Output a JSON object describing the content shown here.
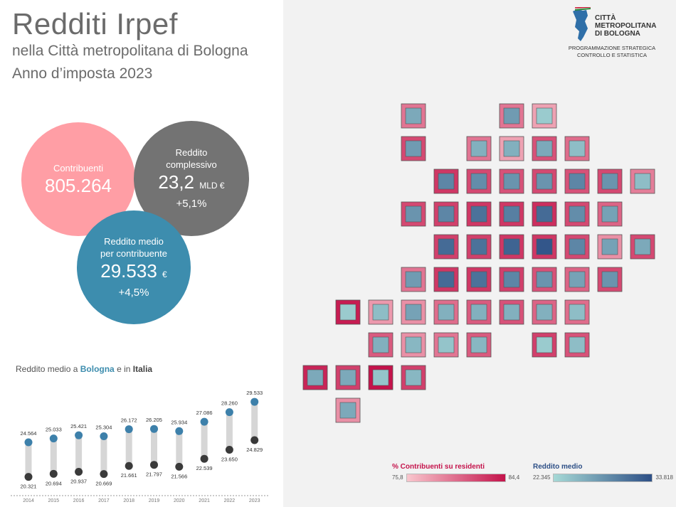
{
  "header": {
    "title": "Redditi Irpef",
    "subtitle": "nella Città metropolitana di Bologna",
    "year_line": "Anno d’imposta 2023"
  },
  "kpi": {
    "contribuenti_label": "Contribuenti",
    "contribuenti_value": "805.264",
    "tot_label_1": "Reddito",
    "tot_label_2": "complessivo",
    "tot_value": "23,2",
    "tot_unit": "MLD €",
    "tot_pct": "+5,1%",
    "med_label_1": "Reddito medio",
    "med_label_2": "per contribuente",
    "med_value": "29.533",
    "med_unit": "€",
    "med_pct": "+4,5%"
  },
  "chart_title": {
    "prefix": "Reddito medio a ",
    "bologna": "Bologna",
    "mid": " e in ",
    "italia": "Italia"
  },
  "chart_data": {
    "type": "dumbbell",
    "categories": [
      "2014",
      "2015",
      "2016",
      "2017",
      "2018",
      "2019",
      "2020",
      "2021",
      "2022",
      "2023"
    ],
    "series": [
      {
        "name": "Bologna",
        "values": [
          24564,
          25033,
          25421,
          25304,
          26172,
          26205,
          25934,
          27086,
          28260,
          29533
        ],
        "labels": [
          "24.564",
          "25.033",
          "25.421",
          "25.304",
          "26.172",
          "26.205",
          "25.934",
          "27.086",
          "28.260",
          "29.533"
        ]
      },
      {
        "name": "Italia",
        "values": [
          20321,
          20694,
          20937,
          20669,
          21661,
          21797,
          21566,
          22539,
          23650,
          24829
        ],
        "labels": [
          "20.321",
          "20.694",
          "20.937",
          "20.669",
          "21.661",
          "21.797",
          "21.566",
          "22.539",
          "23.650",
          "24.829"
        ]
      }
    ],
    "colors": {
      "bologna": "#3d80aa",
      "italia": "#3a3a3a",
      "bar": "#d6d6d6"
    }
  },
  "logo": {
    "line1": "CITTÀ",
    "line2": "METROPOLITANA",
    "line3": "DI BOLOGNA",
    "sub1": "PROGRAMMAZIONE STRATEGICA",
    "sub2": "CONTROLLO E STATISTICA"
  },
  "map": {
    "cells": [
      {
        "c": 3,
        "r": 0,
        "o": 0.45,
        "i": 0.35
      },
      {
        "c": 6,
        "r": 0,
        "o": 0.45,
        "i": 0.45
      },
      {
        "c": 7,
        "r": 0,
        "o": 0.2,
        "i": 0.1
      },
      {
        "c": 3,
        "r": 1,
        "o": 0.7,
        "i": 0.45
      },
      {
        "c": 5,
        "r": 1,
        "o": 0.45,
        "i": 0.3
      },
      {
        "c": 6,
        "r": 1,
        "o": 0.2,
        "i": 0.3
      },
      {
        "c": 7,
        "r": 1,
        "o": 0.65,
        "i": 0.35
      },
      {
        "c": 8,
        "r": 1,
        "o": 0.5,
        "i": 0.2
      },
      {
        "c": 4,
        "r": 2,
        "o": 0.8,
        "i": 0.6
      },
      {
        "c": 5,
        "r": 2,
        "o": 0.7,
        "i": 0.55
      },
      {
        "c": 6,
        "r": 2,
        "o": 0.65,
        "i": 0.5
      },
      {
        "c": 7,
        "r": 2,
        "o": 0.7,
        "i": 0.5
      },
      {
        "c": 8,
        "r": 2,
        "o": 0.65,
        "i": 0.6
      },
      {
        "c": 9,
        "r": 2,
        "o": 0.7,
        "i": 0.5
      },
      {
        "c": 10,
        "r": 2,
        "o": 0.4,
        "i": 0.2
      },
      {
        "c": 3,
        "r": 3,
        "o": 0.7,
        "i": 0.5
      },
      {
        "c": 4,
        "r": 3,
        "o": 0.75,
        "i": 0.6
      },
      {
        "c": 5,
        "r": 3,
        "o": 0.8,
        "i": 0.75
      },
      {
        "c": 6,
        "r": 3,
        "o": 0.8,
        "i": 0.65
      },
      {
        "c": 7,
        "r": 3,
        "o": 0.85,
        "i": 0.8
      },
      {
        "c": 8,
        "r": 3,
        "o": 0.7,
        "i": 0.55
      },
      {
        "c": 9,
        "r": 3,
        "o": 0.55,
        "i": 0.4
      },
      {
        "c": 4,
        "r": 4,
        "o": 0.75,
        "i": 0.8
      },
      {
        "c": 5,
        "r": 4,
        "o": 0.75,
        "i": 0.75
      },
      {
        "c": 6,
        "r": 4,
        "o": 0.8,
        "i": 0.85
      },
      {
        "c": 7,
        "r": 4,
        "o": 0.8,
        "i": 0.95
      },
      {
        "c": 8,
        "r": 4,
        "o": 0.7,
        "i": 0.6
      },
      {
        "c": 9,
        "r": 4,
        "o": 0.3,
        "i": 0.4
      },
      {
        "c": 10,
        "r": 4,
        "o": 0.7,
        "i": 0.35
      },
      {
        "c": 3,
        "r": 5,
        "o": 0.45,
        "i": 0.45
      },
      {
        "c": 4,
        "r": 5,
        "o": 0.8,
        "i": 0.8
      },
      {
        "c": 5,
        "r": 5,
        "o": 0.8,
        "i": 0.75
      },
      {
        "c": 6,
        "r": 5,
        "o": 0.75,
        "i": 0.6
      },
      {
        "c": 7,
        "r": 5,
        "o": 0.65,
        "i": 0.5
      },
      {
        "c": 8,
        "r": 5,
        "o": 0.55,
        "i": 0.4
      },
      {
        "c": 9,
        "r": 5,
        "o": 0.7,
        "i": 0.5
      },
      {
        "c": 1,
        "r": 6,
        "o": 0.95,
        "i": 0.1
      },
      {
        "c": 2,
        "r": 6,
        "o": 0.25,
        "i": 0.2
      },
      {
        "c": 3,
        "r": 6,
        "o": 0.3,
        "i": 0.4
      },
      {
        "c": 4,
        "r": 6,
        "o": 0.5,
        "i": 0.3
      },
      {
        "c": 5,
        "r": 6,
        "o": 0.6,
        "i": 0.3
      },
      {
        "c": 6,
        "r": 6,
        "o": 0.65,
        "i": 0.3
      },
      {
        "c": 7,
        "r": 6,
        "o": 0.55,
        "i": 0.3
      },
      {
        "c": 8,
        "r": 6,
        "o": 0.5,
        "i": 0.2
      },
      {
        "c": 2,
        "r": 7,
        "o": 0.6,
        "i": 0.3
      },
      {
        "c": 3,
        "r": 7,
        "o": 0.3,
        "i": 0.25
      },
      {
        "c": 4,
        "r": 7,
        "o": 0.45,
        "i": 0.15
      },
      {
        "c": 5,
        "r": 7,
        "o": 0.6,
        "i": 0.25
      },
      {
        "c": 7,
        "r": 7,
        "o": 0.75,
        "i": 0.1
      },
      {
        "c": 8,
        "r": 7,
        "o": 0.65,
        "i": 0.2
      },
      {
        "c": 0,
        "r": 8,
        "o": 0.9,
        "i": 0.35
      },
      {
        "c": 1,
        "r": 8,
        "o": 0.75,
        "i": 0.35
      },
      {
        "c": 2,
        "r": 8,
        "o": 1.0,
        "i": 0.15
      },
      {
        "c": 3,
        "r": 8,
        "o": 0.75,
        "i": 0.25
      },
      {
        "c": 1,
        "r": 9,
        "o": 0.3,
        "i": 0.35
      }
    ]
  },
  "legend": {
    "pct_title": "% Contribuenti su residenti",
    "pct_min": "75,8",
    "pct_max": "84,4",
    "pct_from": "#f9c6cd",
    "pct_to": "#c4134b",
    "red_title": "Reddito medio",
    "red_min": "22.345",
    "red_max": "33.818",
    "red_from": "#a6d9d6",
    "red_to": "#2d4f86"
  }
}
